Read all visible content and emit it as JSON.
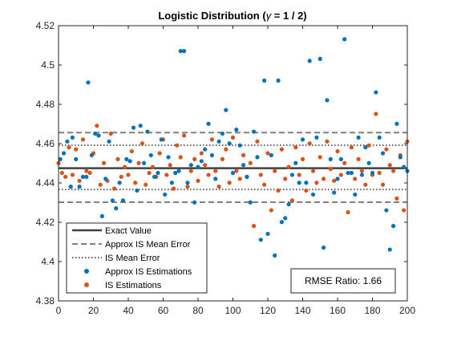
{
  "chart_data": {
    "type": "scatter",
    "title": "Logistic Distribution (γ = 1 / 2)",
    "title_parts": {
      "prefix": "Logistic Distribution (",
      "symbol": "γ",
      "suffix": " = 1 / 2)"
    },
    "xlabel": "",
    "ylabel": "",
    "xlim": [
      0,
      200
    ],
    "ylim": [
      4.38,
      4.52
    ],
    "xticks": [
      0,
      20,
      40,
      60,
      80,
      100,
      120,
      140,
      160,
      180,
      200
    ],
    "yticks": [
      4.38,
      4.4,
      4.42,
      4.44,
      4.46,
      4.48,
      4.5,
      4.52
    ],
    "ytick_labels": [
      "4.38",
      "4.4",
      "4.42",
      "4.44",
      "4.46",
      "4.48",
      "4.5",
      "4.52"
    ],
    "grid": false,
    "legend_position": "bottom-left",
    "reference_lines": [
      {
        "name": "Exact Value",
        "y": 4.4475,
        "style": "solid",
        "color": "#404040"
      },
      {
        "name": "Approx IS Mean Error",
        "y": [
          4.4302,
          4.4656
        ],
        "style": "dashed",
        "color": "#808080"
      },
      {
        "name": "IS Mean Error",
        "y": [
          4.4367,
          4.4592
        ],
        "style": "dotted",
        "color": "#606060"
      }
    ],
    "series": [
      {
        "name": "Approx IS Estimations",
        "color": "#0072BD",
        "points": [
          [
            1,
            4.4521
          ],
          [
            3,
            4.4551
          ],
          [
            5,
            4.4611
          ],
          [
            7,
            4.4381
          ],
          [
            8,
            4.4631
          ],
          [
            10,
            4.4521
          ],
          [
            12,
            4.4381
          ],
          [
            14,
            4.4431
          ],
          [
            16,
            4.4431
          ],
          [
            17,
            4.4911
          ],
          [
            19,
            4.4541
          ],
          [
            21,
            4.4651
          ],
          [
            23,
            4.4641
          ],
          [
            25,
            4.4231
          ],
          [
            27,
            4.4421
          ],
          [
            29,
            4.4611
          ],
          [
            31,
            4.4311
          ],
          [
            33,
            4.4271
          ],
          [
            35,
            4.4401
          ],
          [
            37,
            4.4311
          ],
          [
            39,
            4.4521
          ],
          [
            41,
            4.4511
          ],
          [
            43,
            4.4681
          ],
          [
            45,
            4.4361
          ],
          [
            47,
            4.4691
          ],
          [
            49,
            4.4501
          ],
          [
            51,
            4.4661
          ],
          [
            53,
            4.4541
          ],
          [
            55,
            4.4431
          ],
          [
            57,
            4.4451
          ],
          [
            59,
            4.4621
          ],
          [
            61,
            4.4341
          ],
          [
            63,
            4.4531
          ],
          [
            65,
            4.4401
          ],
          [
            67,
            4.4451
          ],
          [
            69,
            4.4461
          ],
          [
            70,
            4.5071
          ],
          [
            72,
            4.5071
          ],
          [
            74,
            4.4401
          ],
          [
            76,
            4.4491
          ],
          [
            78,
            4.4301
          ],
          [
            80,
            4.4481
          ],
          [
            82,
            4.4511
          ],
          [
            84,
            4.4571
          ],
          [
            86,
            4.4701
          ],
          [
            88,
            4.4541
          ],
          [
            90,
            4.4421
          ],
          [
            92,
            4.4611
          ],
          [
            94,
            4.4651
          ],
          [
            96,
            4.4771
          ],
          [
            98,
            4.4601
          ],
          [
            100,
            4.4451
          ],
          [
            102,
            4.4671
          ],
          [
            104,
            4.4591
          ],
          [
            106,
            4.4491
          ],
          [
            108,
            4.4431
          ],
          [
            110,
            4.4301
          ],
          [
            112,
            4.4661
          ],
          [
            114,
            4.4531
          ],
          [
            116,
            4.4111
          ],
          [
            118,
            4.4921
          ],
          [
            120,
            4.4141
          ],
          [
            122,
            4.4541
          ],
          [
            124,
            4.4031
          ],
          [
            126,
            4.4921
          ],
          [
            128,
            4.4201
          ],
          [
            130,
            4.4221
          ],
          [
            132,
            4.4291
          ],
          [
            134,
            4.4441
          ],
          [
            136,
            4.4501
          ],
          [
            138,
            4.4401
          ],
          [
            140,
            4.4621
          ],
          [
            142,
            4.4401
          ],
          [
            144,
            4.5021
          ],
          [
            146,
            4.4341
          ],
          [
            148,
            4.4631
          ],
          [
            150,
            4.5031
          ],
          [
            152,
            4.4071
          ],
          [
            154,
            4.4821
          ],
          [
            156,
            4.4521
          ],
          [
            158,
            4.4351
          ],
          [
            160,
            4.4421
          ],
          [
            162,
            4.4521
          ],
          [
            164,
            4.5131
          ],
          [
            166,
            4.4451
          ],
          [
            168,
            4.4451
          ],
          [
            170,
            4.4341
          ],
          [
            172,
            4.4631
          ],
          [
            174,
            4.4441
          ],
          [
            176,
            4.4581
          ],
          [
            178,
            4.4501
          ],
          [
            180,
            4.4451
          ],
          [
            182,
            4.4861
          ],
          [
            184,
            4.4631
          ],
          [
            186,
            4.4551
          ],
          [
            188,
            4.4261
          ],
          [
            190,
            4.4061
          ],
          [
            192,
            4.4181
          ],
          [
            194,
            4.4701
          ],
          [
            196,
            4.4531
          ],
          [
            198,
            4.4481
          ],
          [
            200,
            4.4461
          ]
        ]
      },
      {
        "name": "IS Estimations",
        "color": "#D95319",
        "points": [
          [
            0,
            4.4501
          ],
          [
            2,
            4.4451
          ],
          [
            4,
            4.4431
          ],
          [
            6,
            4.4581
          ],
          [
            8,
            4.4441
          ],
          [
            10,
            4.4571
          ],
          [
            12,
            4.4411
          ],
          [
            14,
            4.4621
          ],
          [
            16,
            4.4461
          ],
          [
            18,
            4.4451
          ],
          [
            20,
            4.4551
          ],
          [
            22,
            4.4691
          ],
          [
            24,
            4.4391
          ],
          [
            26,
            4.4501
          ],
          [
            28,
            4.4411
          ],
          [
            30,
            4.4651
          ],
          [
            32,
            4.4371
          ],
          [
            34,
            4.4521
          ],
          [
            36,
            4.4431
          ],
          [
            38,
            4.4481
          ],
          [
            40,
            4.4441
          ],
          [
            42,
            4.4561
          ],
          [
            44,
            4.4401
          ],
          [
            46,
            4.4501
          ],
          [
            48,
            4.4601
          ],
          [
            50,
            4.4391
          ],
          [
            52,
            4.4451
          ],
          [
            54,
            4.4481
          ],
          [
            56,
            4.4431
          ],
          [
            58,
            4.4551
          ],
          [
            60,
            4.4621
          ],
          [
            62,
            4.4441
          ],
          [
            64,
            4.4491
          ],
          [
            66,
            4.4371
          ],
          [
            68,
            4.4591
          ],
          [
            70,
            4.4531
          ],
          [
            72,
            4.4641
          ],
          [
            74,
            4.4381
          ],
          [
            76,
            4.4461
          ],
          [
            78,
            4.4521
          ],
          [
            80,
            4.4411
          ],
          [
            82,
            4.4551
          ],
          [
            84,
            4.4491
          ],
          [
            86,
            4.4441
          ],
          [
            88,
            4.4621
          ],
          [
            90,
            4.4461
          ],
          [
            92,
            4.4381
          ],
          [
            94,
            4.4521
          ],
          [
            96,
            4.4571
          ],
          [
            98,
            4.4401
          ],
          [
            100,
            4.4631
          ],
          [
            102,
            4.4461
          ],
          [
            104,
            4.4421
          ],
          [
            106,
            4.4541
          ],
          [
            108,
            4.4431
          ],
          [
            110,
            4.4501
          ],
          [
            112,
            4.4181
          ],
          [
            114,
            4.4611
          ],
          [
            116,
            4.4441
          ],
          [
            118,
            4.4391
          ],
          [
            120,
            4.4551
          ],
          [
            122,
            4.4261
          ],
          [
            124,
            4.4461
          ],
          [
            126,
            4.4361
          ],
          [
            128,
            4.4571
          ],
          [
            130,
            4.4421
          ],
          [
            132,
            4.4481
          ],
          [
            134,
            4.4311
          ],
          [
            136,
            4.4581
          ],
          [
            138,
            4.4441
          ],
          [
            140,
            4.4521
          ],
          [
            142,
            4.4361
          ],
          [
            144,
            4.4601
          ],
          [
            146,
            4.4461
          ],
          [
            148,
            4.4401
          ],
          [
            150,
            4.4531
          ],
          [
            152,
            4.4421
          ],
          [
            154,
            4.4611
          ],
          [
            156,
            4.4471
          ],
          [
            158,
            4.4411
          ],
          [
            160,
            4.4561
          ],
          [
            162,
            4.4441
          ],
          [
            164,
            4.4501
          ],
          [
            166,
            4.4251
          ],
          [
            168,
            4.4581
          ],
          [
            170,
            4.4421
          ],
          [
            172,
            4.4521
          ],
          [
            174,
            4.4461
          ],
          [
            176,
            4.4391
          ],
          [
            178,
            4.4591
          ],
          [
            180,
            4.4441
          ],
          [
            182,
            4.4751
          ],
          [
            184,
            4.4451
          ],
          [
            186,
            4.4391
          ],
          [
            188,
            4.4571
          ],
          [
            190,
            4.4491
          ],
          [
            192,
            4.4461
          ],
          [
            194,
            4.4321
          ],
          [
            196,
            4.4541
          ],
          [
            198,
            4.4261
          ],
          [
            200,
            4.4611
          ]
        ]
      }
    ],
    "annotation": {
      "text": "RMSE Ratio: 1.66",
      "position": "bottom-right"
    }
  }
}
